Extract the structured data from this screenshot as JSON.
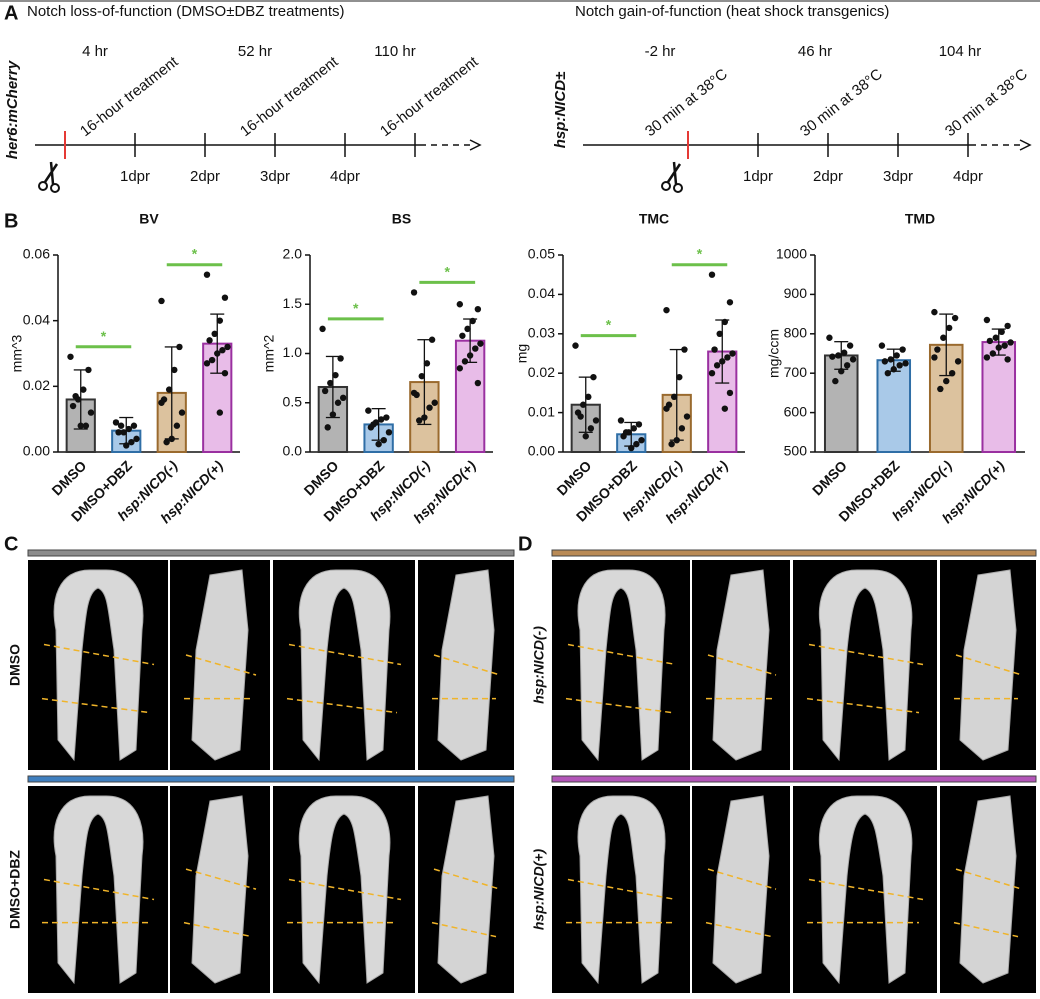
{
  "panel_a": {
    "label": "A",
    "left": {
      "title": "Notch loss-of-function (DMSO±DBZ treatments)",
      "line_label": "her6:mCherry",
      "hours": [
        "4 hr",
        "52 hr",
        "110 hr"
      ],
      "treatment": "16-hour treatment",
      "days": [
        "1dpr",
        "2dpr",
        "3dpr",
        "4dpr"
      ]
    },
    "right": {
      "title": "Notch gain-of-function (heat shock transgenics)",
      "line_label": "hsp:NICD±",
      "hours": [
        "-2 hr",
        "46 hr",
        "104 hr"
      ],
      "treatment": "30 min at 38°C",
      "days": [
        "1dpr",
        "2dpr",
        "3dpr",
        "4dpr"
      ]
    }
  },
  "panel_b": {
    "label": "B"
  },
  "chart_data": [
    {
      "type": "bar",
      "title": "BV",
      "ylabel": "mm^3",
      "categories": [
        "DMSO",
        "DMSO+DBZ",
        "hsp:NICD(-)",
        "hsp:NICD(+)"
      ],
      "values": [
        0.016,
        0.0065,
        0.018,
        0.033
      ],
      "errors": [
        0.009,
        0.004,
        0.014,
        0.009
      ],
      "points": [
        [
          0.029,
          0.025,
          0.019,
          0.016,
          0.014,
          0.012,
          0.008,
          0.008,
          0.017
        ],
        [
          0.009,
          0.008,
          0.007,
          0.006,
          0.006,
          0.004,
          0.003,
          0.002,
          0.008
        ],
        [
          0.046,
          0.032,
          0.025,
          0.019,
          0.016,
          0.012,
          0.008,
          0.004,
          0.003,
          0.015
        ],
        [
          0.054,
          0.047,
          0.04,
          0.036,
          0.034,
          0.032,
          0.031,
          0.03,
          0.028,
          0.027,
          0.024,
          0.012
        ]
      ],
      "colors": [
        "#b3b3b3",
        "#a9c9e8",
        "#dcc29e",
        "#e8bce8"
      ],
      "edge_colors": [
        "#333333",
        "#2f6ea6",
        "#9a6a2e",
        "#9a30a0"
      ],
      "ylim": [
        0,
        0.06
      ],
      "yticks": [
        {
          "value": 0,
          "label": "0.00"
        },
        0.02,
        0.04,
        0.06
      ],
      "significance": [
        {
          "label": "*",
          "between": [
            "DMSO",
            "DMSO+DBZ"
          ]
        },
        {
          "label": "*",
          "between": [
            "hsp:NICD(-)",
            "hsp:NICD(+)"
          ]
        }
      ],
      "significance_color": "#6cc04a"
    },
    {
      "type": "bar",
      "title": "BS",
      "ylabel": "mm^2",
      "categories": [
        "DMSO",
        "DMSO+DBZ",
        "hsp:NICD(-)",
        "hsp:NICD(+)"
      ],
      "values": [
        0.66,
        0.28,
        0.71,
        1.13
      ],
      "errors": [
        0.31,
        0.16,
        0.43,
        0.22
      ],
      "points": [
        [
          1.25,
          0.95,
          0.78,
          0.7,
          0.62,
          0.55,
          0.5,
          0.38,
          0.25
        ],
        [
          0.42,
          0.35,
          0.33,
          0.3,
          0.25,
          0.2,
          0.12,
          0.08,
          0.28
        ],
        [
          1.62,
          1.14,
          0.9,
          0.77,
          0.58,
          0.5,
          0.45,
          0.35,
          0.32,
          0.6
        ],
        [
          1.5,
          1.45,
          1.33,
          1.25,
          1.18,
          1.1,
          1.05,
          0.98,
          0.92,
          0.85,
          0.7
        ]
      ],
      "colors": [
        "#b3b3b3",
        "#a9c9e8",
        "#dcc29e",
        "#e8bce8"
      ],
      "edge_colors": [
        "#333333",
        "#2f6ea6",
        "#9a6a2e",
        "#9a30a0"
      ],
      "ylim": [
        0,
        2
      ],
      "yticks": [
        {
          "value": 0,
          "label": "0.0"
        },
        0.5,
        {
          "value": 1,
          "label": "1.0"
        },
        1.5,
        {
          "value": 2,
          "label": "2.0"
        }
      ],
      "significance": [
        {
          "label": "*",
          "between": [
            "DMSO",
            "DMSO+DBZ"
          ]
        },
        {
          "label": "*",
          "between": [
            "hsp:NICD(-)",
            "hsp:NICD(+)"
          ]
        }
      ],
      "significance_color": "#6cc04a"
    },
    {
      "type": "bar",
      "title": "TMC",
      "ylabel": "mg",
      "categories": [
        "DMSO",
        "DMSO+DBZ",
        "hsp:NICD(-)",
        "hsp:NICD(+)"
      ],
      "values": [
        0.012,
        0.0045,
        0.0145,
        0.0255
      ],
      "errors": [
        0.007,
        0.003,
        0.0115,
        0.008
      ],
      "points": [
        [
          0.027,
          0.019,
          0.014,
          0.012,
          0.01,
          0.008,
          0.006,
          0.004,
          0.009
        ],
        [
          0.008,
          0.007,
          0.006,
          0.005,
          0.004,
          0.003,
          0.002,
          0.001,
          0.005
        ],
        [
          0.036,
          0.026,
          0.019,
          0.014,
          0.012,
          0.009,
          0.006,
          0.003,
          0.002,
          0.011
        ],
        [
          0.045,
          0.038,
          0.033,
          0.03,
          0.026,
          0.025,
          0.024,
          0.023,
          0.022,
          0.02,
          0.015,
          0.011
        ]
      ],
      "colors": [
        "#b3b3b3",
        "#a9c9e8",
        "#dcc29e",
        "#e8bce8"
      ],
      "edge_colors": [
        "#333333",
        "#2f6ea6",
        "#9a6a2e",
        "#9a30a0"
      ],
      "ylim": [
        0,
        0.05
      ],
      "yticks": [
        {
          "value": 0,
          "label": "0.00"
        },
        0.01,
        0.02,
        0.03,
        0.04,
        0.05
      ],
      "significance": [
        {
          "label": "*",
          "between": [
            "DMSO",
            "DMSO+DBZ"
          ]
        },
        {
          "label": "*",
          "between": [
            "hsp:NICD(-)",
            "hsp:NICD(+)"
          ]
        }
      ],
      "significance_color": "#6cc04a"
    },
    {
      "type": "bar",
      "title": "TMD",
      "ylabel": "mg/ccm",
      "categories": [
        "DMSO",
        "DMSO+DBZ",
        "hsp:NICD(-)",
        "hsp:NICD(+)"
      ],
      "values": [
        745,
        733,
        772,
        779
      ],
      "errors": [
        35,
        28,
        78,
        33
      ],
      "points": [
        [
          790,
          770,
          752,
          745,
          742,
          735,
          720,
          705,
          680
        ],
        [
          770,
          760,
          745,
          735,
          730,
          725,
          720,
          710,
          700
        ],
        [
          855,
          840,
          815,
          790,
          760,
          730,
          700,
          680,
          660,
          740
        ],
        [
          835,
          820,
          805,
          790,
          782,
          778,
          770,
          765,
          750,
          740,
          735
        ]
      ],
      "colors": [
        "#b3b3b3",
        "#a9c9e8",
        "#dcc29e",
        "#e8bce8"
      ],
      "edge_colors": [
        "#333333",
        "#2f6ea6",
        "#9a6a2e",
        "#9a30a0"
      ],
      "ylim": [
        500,
        1000
      ],
      "yticks": [
        500,
        600,
        700,
        800,
        900,
        1000
      ],
      "significance": [],
      "significance_color": "#6cc04a"
    }
  ],
  "panel_c": {
    "label": "C",
    "rows": [
      {
        "label": "DMSO",
        "color": "#8c8c8c"
      },
      {
        "label": "DMSO+DBZ",
        "color": "#3f7fbf"
      }
    ]
  },
  "panel_d": {
    "label": "D",
    "rows": [
      {
        "label": "hsp:NICD(-)",
        "color": "#b98a55"
      },
      {
        "label": "hsp:NICD(+)",
        "color": "#b255b8"
      }
    ]
  }
}
